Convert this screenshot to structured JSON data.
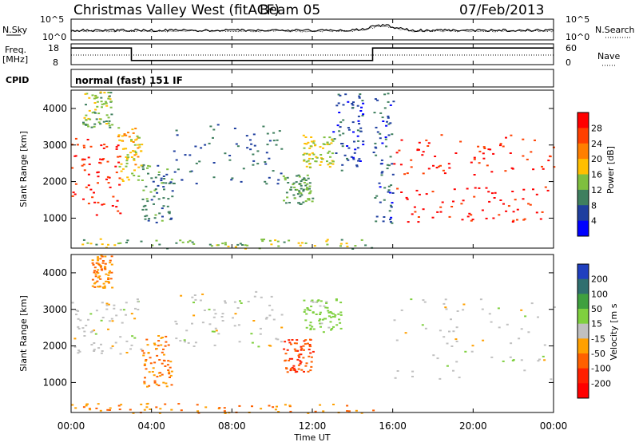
{
  "header": {
    "station": "Christmas Valley West (fitACF)",
    "beam": "Beam 05",
    "date": "07/Feb/2013"
  },
  "small_panels": {
    "nsky_label": "N.Sky",
    "nsky_ticks": [
      "10^5",
      "10^0"
    ],
    "nsearch_label": "N.Search",
    "nsearch_ticks": [
      "10^5",
      "10^0"
    ],
    "freq_label": "Freq.",
    "freq_unit": "[MHz]",
    "freq_ticks": [
      "18",
      "8"
    ],
    "nave_label": "Nave",
    "nave_ticks": [
      "60",
      "0"
    ],
    "cpid_label": "CPID",
    "cpid_value": "normal (fast) 151 IF"
  },
  "x_axis": {
    "label": "Time UT",
    "ticks": [
      "00:00",
      "04:00",
      "08:00",
      "12:00",
      "16:00",
      "20:00",
      "00:00"
    ]
  },
  "power_panel": {
    "y_label": "Slant Range [km]",
    "y_ticks": [
      "4000",
      "3000",
      "2000",
      "1000"
    ],
    "colorbar_label": "Power [dB]",
    "colorbar_ticks": [
      "28",
      "24",
      "20",
      "16",
      "12",
      "8",
      "4"
    ],
    "colors": [
      "#ff0000",
      "#ff4000",
      "#ff7f00",
      "#ffbf00",
      "#7fbf3f",
      "#3f7f5f",
      "#1f3f9f",
      "#0000ff"
    ]
  },
  "velocity_panel": {
    "y_label": "Slant Range [km]",
    "y_ticks": [
      "4000",
      "3000",
      "2000",
      "1000"
    ],
    "colorbar_label": "Velocity [m s",
    "colorbar_ticks": [
      "200",
      "100",
      "50",
      "15",
      "-15",
      "-50",
      "-100",
      "-200"
    ],
    "colors": [
      "#1f3fbf",
      "#2f6f6f",
      "#3fa03f",
      "#7fd03f",
      "#c0c0c0",
      "#ffa000",
      "#ff6000",
      "#ff2000",
      "#ff0000"
    ]
  },
  "chart_data": {
    "type": "heatmap",
    "x_range_hours": [
      0,
      24
    ],
    "y_range_km": [
      180,
      4500
    ],
    "freq_segments": [
      {
        "start_h": 0.0,
        "end_h": 3.0,
        "freq_mhz": 16
      },
      {
        "start_h": 3.0,
        "end_h": 15.0,
        "freq_mhz": 10
      },
      {
        "start_h": 15.0,
        "end_h": 24.0,
        "freq_mhz": 16
      }
    ],
    "power_blobs": [
      {
        "h0": 0.0,
        "h1": 2.5,
        "r0": 1100,
        "r1": 3200,
        "db": 26
      },
      {
        "h0": 0.5,
        "h1": 2.0,
        "r0": 3500,
        "r1": 4500,
        "db": 12
      },
      {
        "h0": 2.3,
        "h1": 3.5,
        "r0": 2000,
        "r1": 3500,
        "db": 16
      },
      {
        "h0": 3.5,
        "h1": 5.0,
        "r0": 900,
        "r1": 2500,
        "db": 8
      },
      {
        "h0": 5.0,
        "h1": 10.5,
        "r0": 1900,
        "r1": 3600,
        "db": 6
      },
      {
        "h0": 10.5,
        "h1": 12.0,
        "r0": 1400,
        "r1": 2200,
        "db": 10
      },
      {
        "h0": 11.5,
        "h1": 13.0,
        "r0": 2400,
        "r1": 3300,
        "db": 14
      },
      {
        "h0": 13.0,
        "h1": 14.5,
        "r0": 2300,
        "r1": 4500,
        "db": 4
      },
      {
        "h0": 15.0,
        "h1": 16.0,
        "r0": 800,
        "r1": 4500,
        "db": 5
      },
      {
        "h0": 16.0,
        "h1": 24.0,
        "r0": 900,
        "r1": 1900,
        "db": 28
      },
      {
        "h0": 16.0,
        "h1": 24.0,
        "r0": 2200,
        "r1": 3300,
        "db": 26
      },
      {
        "h0": 0.0,
        "h1": 15.0,
        "r0": 180,
        "r1": 450,
        "db": 12
      }
    ],
    "velocity_blobs": [
      {
        "h0": 0.0,
        "h1": 3.5,
        "r0": 1800,
        "r1": 3300,
        "v": 0
      },
      {
        "h0": 1.0,
        "h1": 2.0,
        "r0": 3600,
        "r1": 4500,
        "v": -50
      },
      {
        "h0": 3.5,
        "h1": 5.0,
        "r0": 900,
        "r1": 2400,
        "v": -50
      },
      {
        "h0": 5.0,
        "h1": 10.5,
        "r0": 2000,
        "r1": 3500,
        "v": 0
      },
      {
        "h0": 10.5,
        "h1": 12.0,
        "r0": 1300,
        "r1": 2200,
        "v": -100
      },
      {
        "h0": 11.5,
        "h1": 13.5,
        "r0": 2400,
        "r1": 3300,
        "v": 30
      },
      {
        "h0": 16.0,
        "h1": 24.0,
        "r0": 1100,
        "r1": 3300,
        "v": 0
      },
      {
        "h0": 0.0,
        "h1": 15.0,
        "r0": 180,
        "r1": 450,
        "v": -50
      }
    ]
  }
}
